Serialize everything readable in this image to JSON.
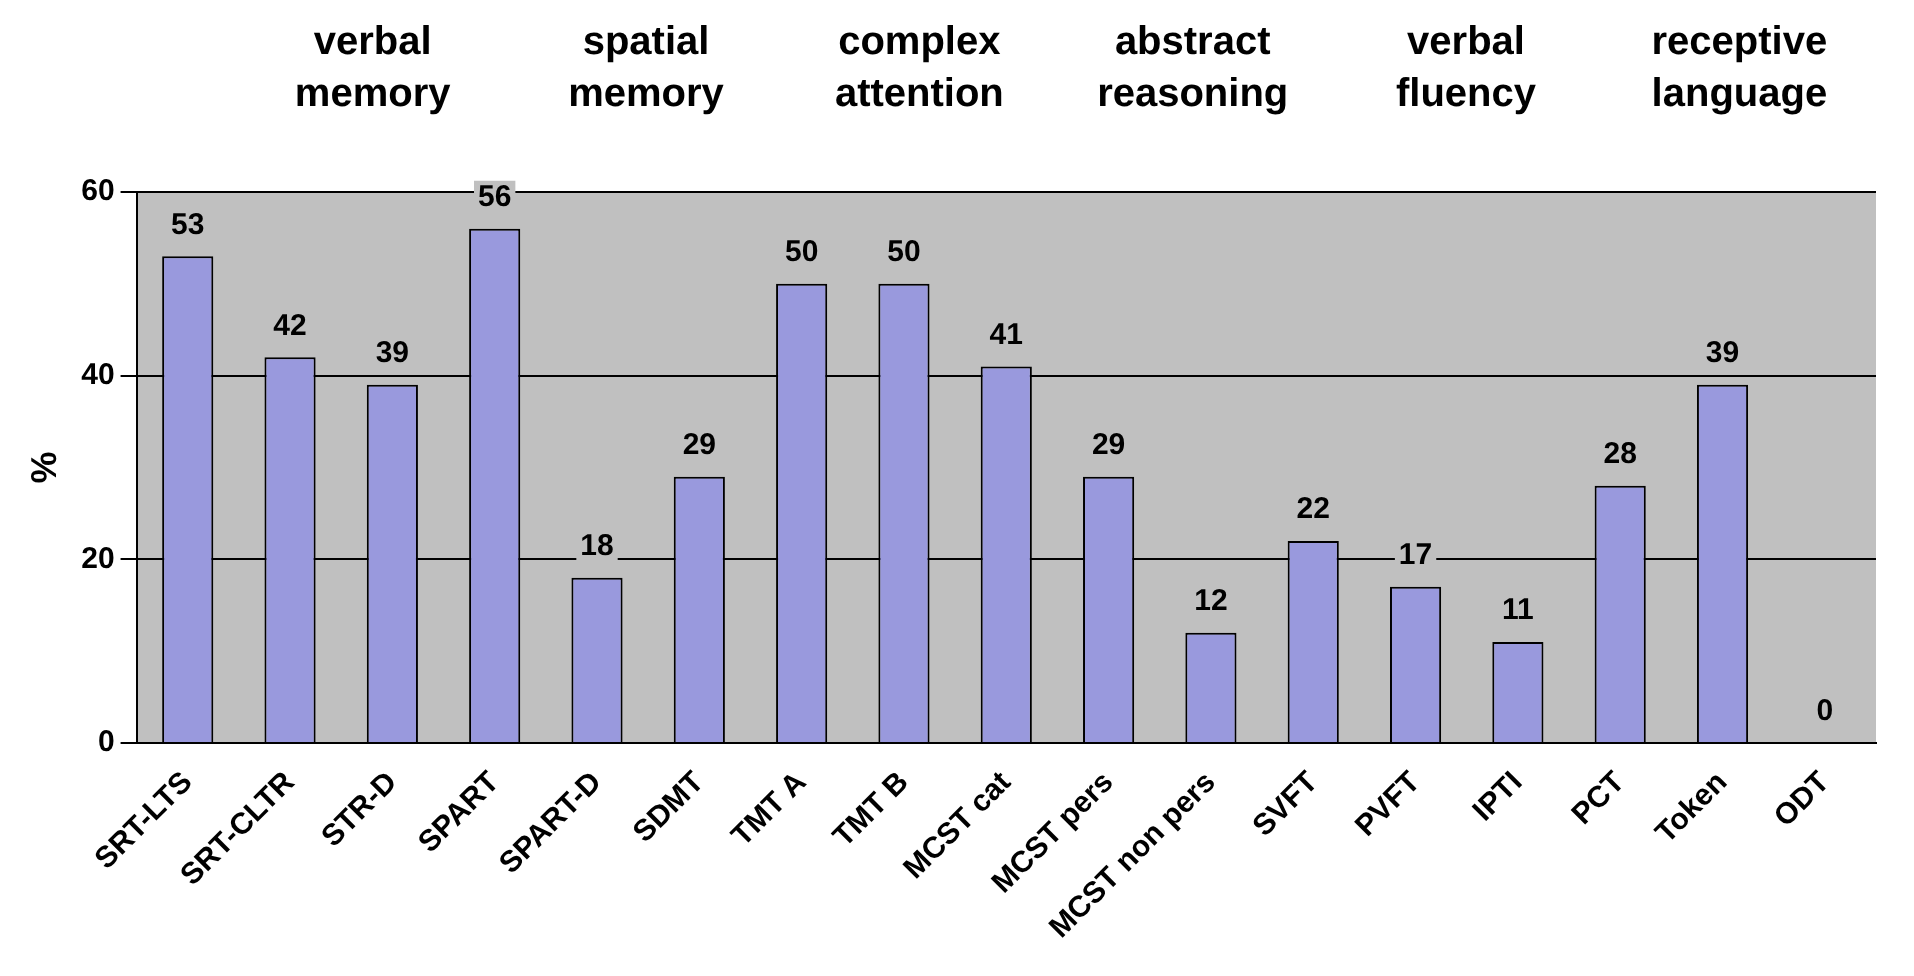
{
  "chart_data": {
    "type": "bar",
    "ylabel": "%",
    "annotations": [
      "verbal memory",
      "spatial memory",
      "complex attention",
      "abstract reasoning",
      "verbal fluency",
      "receptive language"
    ],
    "categories": [
      "SRT-LTS",
      "SRT-CLTR",
      "STR-D",
      "SPART",
      "SPART-D",
      "SDMT",
      "TMT A",
      "TMT B",
      "MCST cat",
      "MCST pers",
      "MCST non pers",
      "SVFT",
      "PVFT",
      "IPTI",
      "PCT",
      "Token",
      "ODT"
    ],
    "values": [
      53,
      42,
      39,
      56,
      18,
      29,
      50,
      50,
      41,
      29,
      12,
      22,
      17,
      11,
      28,
      39,
      0
    ],
    "color": "#9999dd",
    "ylim": [
      0,
      60
    ],
    "yticks": [
      0,
      20,
      40,
      60
    ],
    "grid": "y",
    "data_labels": true,
    "legend": false
  }
}
